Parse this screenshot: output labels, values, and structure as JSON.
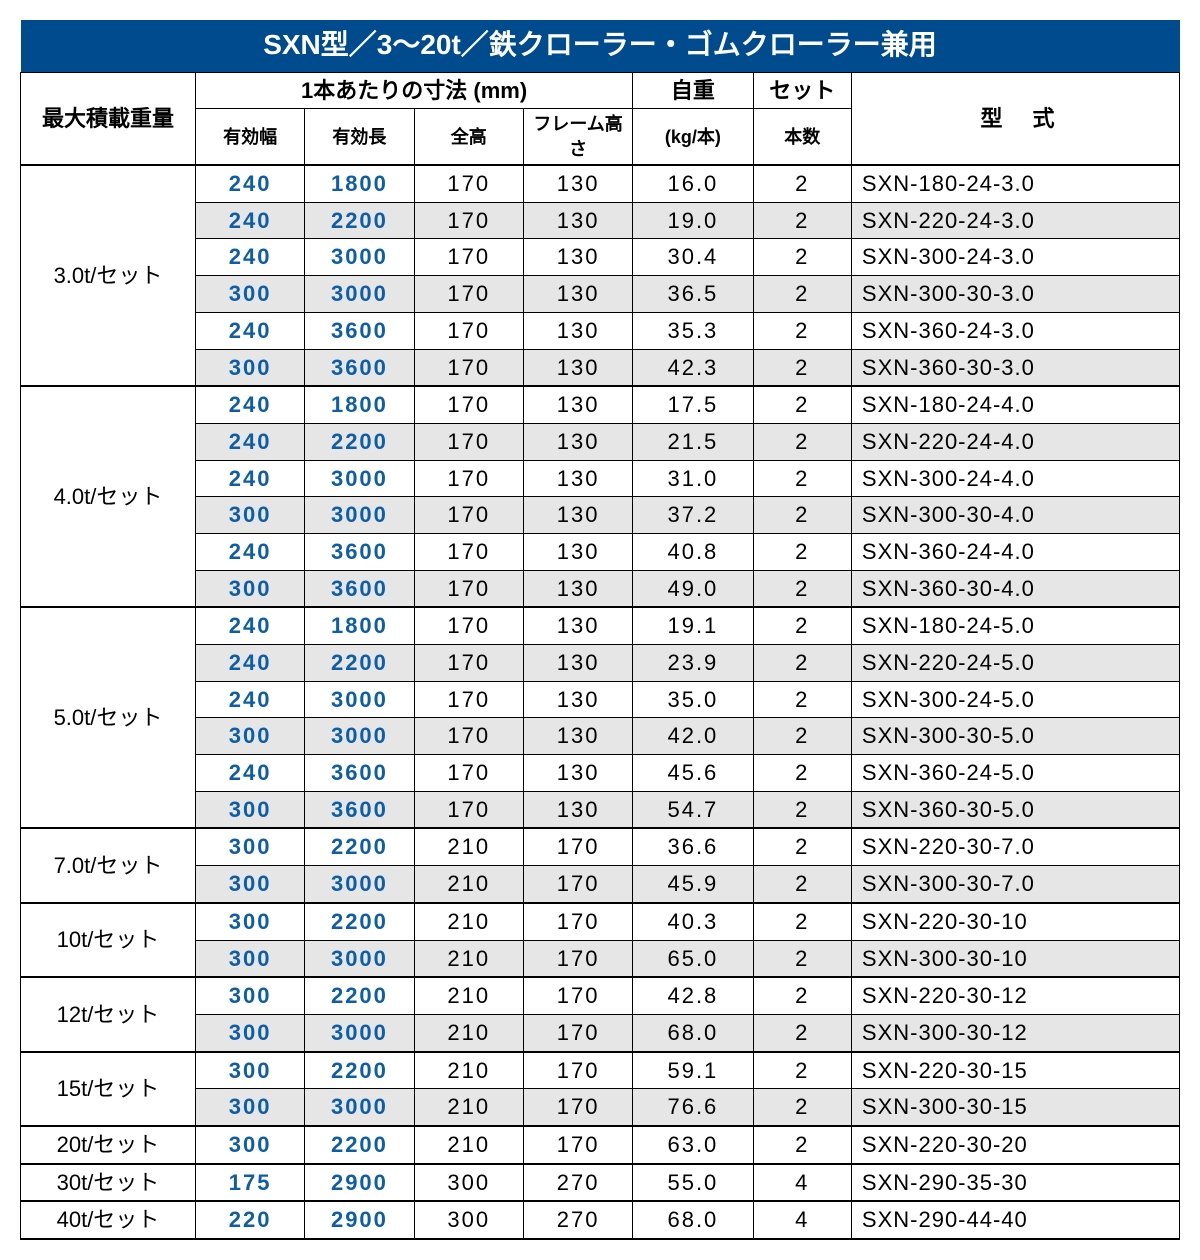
{
  "colors": {
    "title_bg": "#004b8d",
    "title_fg": "#ffffff",
    "blue_text": "#0d5ea6",
    "alt_row_bg": "#e6e6e6",
    "border": "#000000"
  },
  "title": "SXN型／3～20t／鉄クローラー・ゴムクローラー兼用",
  "headers": {
    "load": "最大積載重量",
    "dim_group": "1本あたりの寸法 (mm)",
    "eff_w": "有効幅",
    "eff_l": "有効長",
    "total_h": "全高",
    "frame_h": "フレーム高さ",
    "weight": "自重",
    "weight_sub": "(kg/本)",
    "set": "セット",
    "set_sub": "本数",
    "model": "型式"
  },
  "groups": [
    {
      "label": "3.0t/セット",
      "rows": [
        {
          "w": "240",
          "l": "1800",
          "h": "170",
          "fh": "130",
          "wt": "16.0",
          "set": "2",
          "model": "SXN-180-24-3.0"
        },
        {
          "w": "240",
          "l": "2200",
          "h": "170",
          "fh": "130",
          "wt": "19.0",
          "set": "2",
          "model": "SXN-220-24-3.0"
        },
        {
          "w": "240",
          "l": "3000",
          "h": "170",
          "fh": "130",
          "wt": "30.4",
          "set": "2",
          "model": "SXN-300-24-3.0"
        },
        {
          "w": "300",
          "l": "3000",
          "h": "170",
          "fh": "130",
          "wt": "36.5",
          "set": "2",
          "model": "SXN-300-30-3.0"
        },
        {
          "w": "240",
          "l": "3600",
          "h": "170",
          "fh": "130",
          "wt": "35.3",
          "set": "2",
          "model": "SXN-360-24-3.0"
        },
        {
          "w": "300",
          "l": "3600",
          "h": "170",
          "fh": "130",
          "wt": "42.3",
          "set": "2",
          "model": "SXN-360-30-3.0"
        }
      ]
    },
    {
      "label": "4.0t/セット",
      "rows": [
        {
          "w": "240",
          "l": "1800",
          "h": "170",
          "fh": "130",
          "wt": "17.5",
          "set": "2",
          "model": "SXN-180-24-4.0"
        },
        {
          "w": "240",
          "l": "2200",
          "h": "170",
          "fh": "130",
          "wt": "21.5",
          "set": "2",
          "model": "SXN-220-24-4.0"
        },
        {
          "w": "240",
          "l": "3000",
          "h": "170",
          "fh": "130",
          "wt": "31.0",
          "set": "2",
          "model": "SXN-300-24-4.0"
        },
        {
          "w": "300",
          "l": "3000",
          "h": "170",
          "fh": "130",
          "wt": "37.2",
          "set": "2",
          "model": "SXN-300-30-4.0"
        },
        {
          "w": "240",
          "l": "3600",
          "h": "170",
          "fh": "130",
          "wt": "40.8",
          "set": "2",
          "model": "SXN-360-24-4.0"
        },
        {
          "w": "300",
          "l": "3600",
          "h": "170",
          "fh": "130",
          "wt": "49.0",
          "set": "2",
          "model": "SXN-360-30-4.0"
        }
      ]
    },
    {
      "label": "5.0t/セット",
      "rows": [
        {
          "w": "240",
          "l": "1800",
          "h": "170",
          "fh": "130",
          "wt": "19.1",
          "set": "2",
          "model": "SXN-180-24-5.0"
        },
        {
          "w": "240",
          "l": "2200",
          "h": "170",
          "fh": "130",
          "wt": "23.9",
          "set": "2",
          "model": "SXN-220-24-5.0"
        },
        {
          "w": "240",
          "l": "3000",
          "h": "170",
          "fh": "130",
          "wt": "35.0",
          "set": "2",
          "model": "SXN-300-24-5.0"
        },
        {
          "w": "300",
          "l": "3000",
          "h": "170",
          "fh": "130",
          "wt": "42.0",
          "set": "2",
          "model": "SXN-300-30-5.0"
        },
        {
          "w": "240",
          "l": "3600",
          "h": "170",
          "fh": "130",
          "wt": "45.6",
          "set": "2",
          "model": "SXN-360-24-5.0"
        },
        {
          "w": "300",
          "l": "3600",
          "h": "170",
          "fh": "130",
          "wt": "54.7",
          "set": "2",
          "model": "SXN-360-30-5.0"
        }
      ]
    },
    {
      "label": "7.0t/セット",
      "rows": [
        {
          "w": "300",
          "l": "2200",
          "h": "210",
          "fh": "170",
          "wt": "36.6",
          "set": "2",
          "model": "SXN-220-30-7.0"
        },
        {
          "w": "300",
          "l": "3000",
          "h": "210",
          "fh": "170",
          "wt": "45.9",
          "set": "2",
          "model": "SXN-300-30-7.0"
        }
      ]
    },
    {
      "label": "10t/セット",
      "rows": [
        {
          "w": "300",
          "l": "2200",
          "h": "210",
          "fh": "170",
          "wt": "40.3",
          "set": "2",
          "model": "SXN-220-30-10"
        },
        {
          "w": "300",
          "l": "3000",
          "h": "210",
          "fh": "170",
          "wt": "65.0",
          "set": "2",
          "model": "SXN-300-30-10"
        }
      ]
    },
    {
      "label": "12t/セット",
      "rows": [
        {
          "w": "300",
          "l": "2200",
          "h": "210",
          "fh": "170",
          "wt": "42.8",
          "set": "2",
          "model": "SXN-220-30-12"
        },
        {
          "w": "300",
          "l": "3000",
          "h": "210",
          "fh": "170",
          "wt": "68.0",
          "set": "2",
          "model": "SXN-300-30-12"
        }
      ]
    },
    {
      "label": "15t/セット",
      "rows": [
        {
          "w": "300",
          "l": "2200",
          "h": "210",
          "fh": "170",
          "wt": "59.1",
          "set": "2",
          "model": "SXN-220-30-15"
        },
        {
          "w": "300",
          "l": "3000",
          "h": "210",
          "fh": "170",
          "wt": "76.6",
          "set": "2",
          "model": "SXN-300-30-15"
        }
      ]
    },
    {
      "label": "20t/セット",
      "rows": [
        {
          "w": "300",
          "l": "2200",
          "h": "210",
          "fh": "170",
          "wt": "63.0",
          "set": "2",
          "model": "SXN-220-30-20"
        }
      ]
    },
    {
      "label": "30t/セット",
      "rows": [
        {
          "w": "175",
          "l": "2900",
          "h": "300",
          "fh": "270",
          "wt": "55.0",
          "set": "4",
          "model": "SXN-290-35-30"
        }
      ]
    },
    {
      "label": "40t/セット",
      "rows": [
        {
          "w": "220",
          "l": "2900",
          "h": "300",
          "fh": "270",
          "wt": "68.0",
          "set": "4",
          "model": "SXN-290-44-40"
        }
      ]
    }
  ]
}
